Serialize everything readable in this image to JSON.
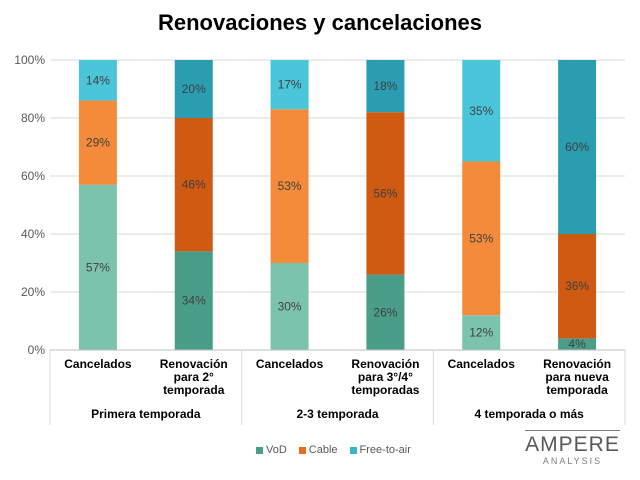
{
  "chart_data": {
    "type": "bar",
    "stacked": true,
    "title": "Renovaciones y cancelaciones",
    "ylim": [
      0,
      100
    ],
    "yticks": [
      "0%",
      "20%",
      "40%",
      "60%",
      "80%",
      "100%"
    ],
    "categories": [
      [
        "Cancelados"
      ],
      [
        "Renovación",
        "para 2°",
        "temporada"
      ],
      [
        "Cancelados"
      ],
      [
        "Renovación",
        "para 3°/4°",
        "temporadas"
      ],
      [
        "Cancelados"
      ],
      [
        "Renovación",
        "para nueva",
        "temporada"
      ]
    ],
    "groups": [
      "Primera temporada",
      "2-3 temporada",
      "4 temporada o más"
    ],
    "series": [
      {
        "name": "VoD",
        "values": [
          57,
          34,
          30,
          26,
          12,
          4
        ],
        "labels": [
          "57%",
          "34%",
          "30%",
          "26%",
          "12%",
          "4%"
        ]
      },
      {
        "name": "Cable",
        "values": [
          29,
          46,
          53,
          56,
          53,
          36
        ],
        "labels": [
          "29%",
          "46%",
          "53%",
          "56%",
          "53%",
          "36%"
        ]
      },
      {
        "name": "Free-to-air",
        "values": [
          14,
          20,
          17,
          18,
          35,
          60
        ],
        "labels": [
          "14%",
          "20%",
          "17%",
          "18%",
          "35%",
          "60%"
        ]
      }
    ],
    "colors": {
      "light": [
        "#7cc3ad",
        "#f38b3a",
        "#4bc5da"
      ],
      "dark": [
        "#4a9e89",
        "#cf5a12",
        "#2a9db1"
      ]
    },
    "legend": "bottom"
  },
  "logo": {
    "main": "AMPERE",
    "sub": "ANALYSIS"
  }
}
